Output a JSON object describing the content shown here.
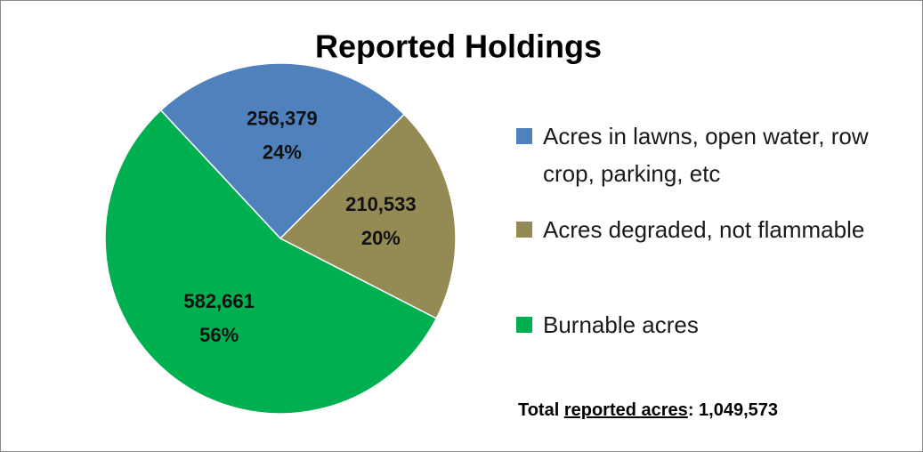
{
  "chart_data": {
    "type": "pie",
    "title": "Reported Holdings",
    "categories": [
      "Acres in lawns, open water, row crop, parking, etc",
      "Acres degraded, not flammable",
      "Burnable acres"
    ],
    "values": [
      256379,
      210533,
      582661
    ],
    "value_labels": [
      "256,379",
      "210,533",
      "582,661"
    ],
    "percent_labels": [
      "24%",
      "20%",
      "56%"
    ],
    "colors": [
      "#4f81bd",
      "#948a54",
      "#00b050"
    ],
    "legend": "right",
    "annotation": [
      "Total ",
      "reported acres",
      ": 1,049,573"
    ]
  }
}
